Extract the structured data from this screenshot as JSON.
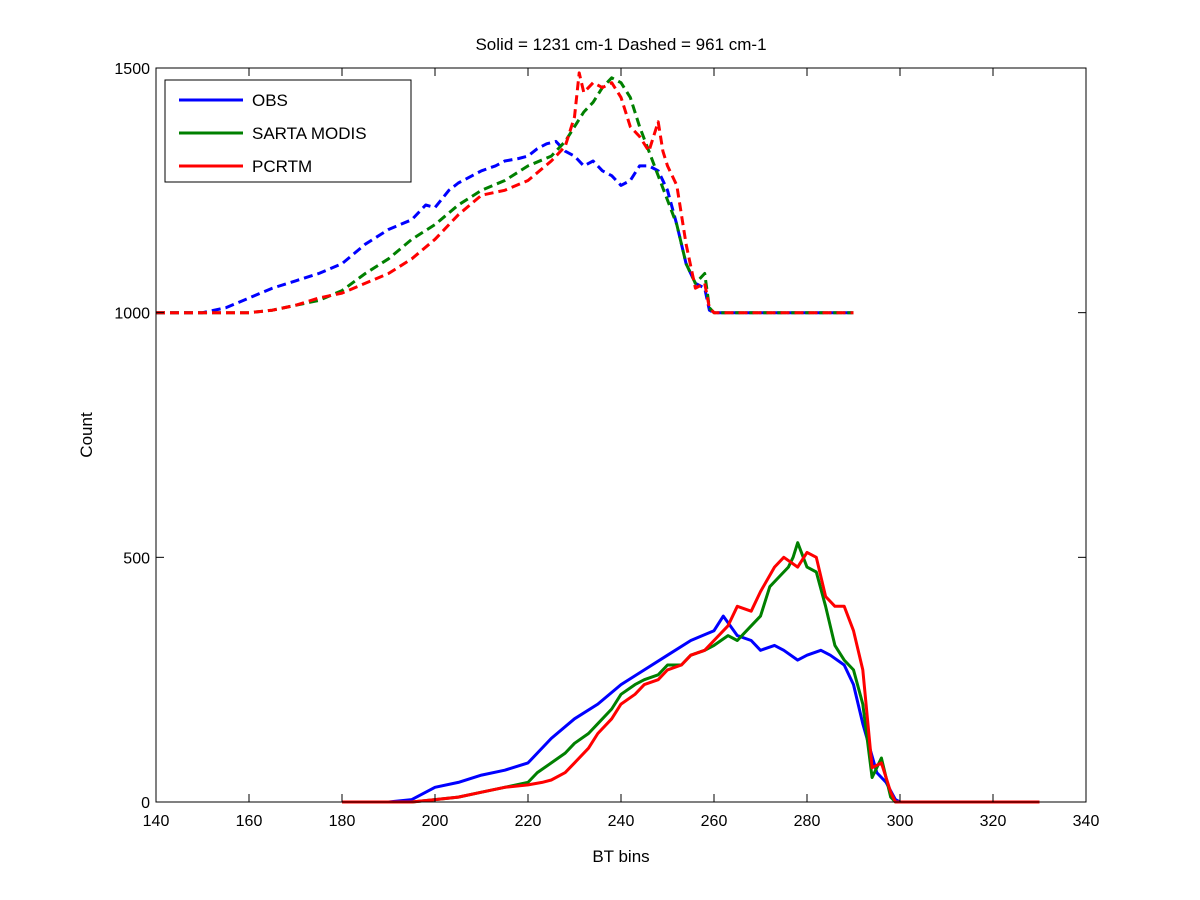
{
  "chart_data": {
    "type": "line",
    "title": "Solid = 1231 cm-1  Dashed = 961 cm-1",
    "xlabel": "BT bins",
    "ylabel": "Count",
    "xlim": [
      140,
      340
    ],
    "ylim": [
      0,
      1500
    ],
    "xticks": [
      140,
      160,
      180,
      200,
      220,
      240,
      260,
      280,
      300,
      320,
      340
    ],
    "yticks": [
      0,
      500,
      1000,
      1500
    ],
    "grid": false,
    "legend_position": "top-left",
    "legend": [
      {
        "label": "OBS",
        "color": "#0000ff"
      },
      {
        "label": "SARTA MODIS",
        "color": "#008000"
      },
      {
        "label": "PCRTM",
        "color": "#ff0000"
      }
    ],
    "series": [
      {
        "name": "OBS",
        "color": "#0000ff",
        "style": "dashed",
        "x": [
          140,
          150,
          155,
          160,
          165,
          170,
          175,
          180,
          185,
          190,
          195,
          198,
          200,
          203,
          205,
          208,
          210,
          213,
          215,
          218,
          220,
          222,
          224,
          226,
          228,
          230,
          232,
          234,
          236,
          238,
          240,
          242,
          244,
          246,
          248,
          250,
          252,
          254,
          256,
          258,
          259,
          260,
          265,
          270,
          275,
          280,
          285,
          290
        ],
        "y": [
          1000,
          1000,
          1010,
          1030,
          1050,
          1065,
          1080,
          1100,
          1140,
          1170,
          1190,
          1220,
          1215,
          1250,
          1265,
          1280,
          1290,
          1300,
          1310,
          1315,
          1320,
          1335,
          1345,
          1350,
          1330,
          1320,
          1300,
          1310,
          1290,
          1280,
          1260,
          1270,
          1300,
          1300,
          1290,
          1250,
          1180,
          1100,
          1060,
          1050,
          1005,
          1000,
          1000,
          1000,
          1000,
          1000,
          1000,
          1000
        ]
      },
      {
        "name": "SARTA MODIS",
        "color": "#008000",
        "style": "dashed",
        "x": [
          140,
          160,
          165,
          170,
          175,
          180,
          185,
          190,
          195,
          200,
          205,
          210,
          215,
          220,
          225,
          228,
          230,
          232,
          234,
          236,
          238,
          240,
          242,
          244,
          246,
          248,
          250,
          252,
          254,
          256,
          258,
          259,
          260,
          265,
          270,
          275,
          280,
          285,
          290
        ],
        "y": [
          1000,
          1000,
          1005,
          1015,
          1025,
          1045,
          1080,
          1110,
          1150,
          1180,
          1220,
          1250,
          1270,
          1300,
          1320,
          1350,
          1380,
          1410,
          1430,
          1460,
          1480,
          1470,
          1440,
          1380,
          1330,
          1280,
          1230,
          1180,
          1100,
          1060,
          1080,
          1010,
          1000,
          1000,
          1000,
          1000,
          1000,
          1000,
          1000
        ]
      },
      {
        "name": "PCRTM",
        "color": "#ff0000",
        "style": "dashed",
        "x": [
          140,
          160,
          165,
          170,
          175,
          180,
          185,
          190,
          195,
          200,
          205,
          210,
          215,
          220,
          225,
          228,
          230,
          231,
          232,
          234,
          236,
          238,
          240,
          242,
          244,
          246,
          248,
          249,
          250,
          252,
          254,
          256,
          258,
          259,
          260,
          265,
          270,
          275,
          280,
          285,
          290
        ],
        "y": [
          1000,
          1000,
          1005,
          1015,
          1030,
          1040,
          1060,
          1080,
          1110,
          1150,
          1200,
          1240,
          1250,
          1270,
          1310,
          1340,
          1400,
          1490,
          1450,
          1470,
          1460,
          1470,
          1440,
          1380,
          1360,
          1330,
          1390,
          1330,
          1300,
          1260,
          1140,
          1050,
          1060,
          1010,
          1000,
          1000,
          1000,
          1000,
          1000,
          1000,
          1000
        ]
      },
      {
        "name": "OBS",
        "color": "#0000ff",
        "style": "solid",
        "x": [
          180,
          190,
          195,
          200,
          205,
          210,
          215,
          220,
          222,
          225,
          230,
          235,
          240,
          245,
          250,
          255,
          260,
          262,
          265,
          268,
          270,
          273,
          275,
          278,
          280,
          283,
          285,
          288,
          290,
          292,
          295,
          297,
          299,
          300,
          310,
          320,
          330
        ],
        "y": [
          0,
          0,
          5,
          30,
          40,
          55,
          65,
          80,
          100,
          130,
          170,
          200,
          240,
          270,
          300,
          330,
          350,
          380,
          340,
          330,
          310,
          320,
          310,
          290,
          300,
          310,
          300,
          280,
          240,
          160,
          60,
          40,
          5,
          0,
          0,
          0,
          0
        ]
      },
      {
        "name": "SARTA MODIS",
        "color": "#008000",
        "style": "solid",
        "x": [
          180,
          195,
          200,
          205,
          210,
          215,
          220,
          222,
          225,
          228,
          230,
          233,
          235,
          238,
          240,
          243,
          245,
          248,
          250,
          253,
          255,
          258,
          260,
          263,
          265,
          268,
          270,
          272,
          274,
          276,
          277,
          278,
          280,
          282,
          284,
          286,
          288,
          290,
          292,
          294,
          296,
          298,
          299,
          300,
          310,
          320,
          330
        ],
        "y": [
          0,
          0,
          5,
          10,
          20,
          30,
          40,
          60,
          80,
          100,
          120,
          140,
          160,
          190,
          220,
          240,
          250,
          260,
          280,
          280,
          300,
          310,
          320,
          340,
          330,
          360,
          380,
          440,
          460,
          480,
          500,
          530,
          480,
          470,
          400,
          320,
          290,
          270,
          200,
          50,
          90,
          10,
          0,
          0,
          0,
          0,
          0
        ]
      },
      {
        "name": "PCRTM",
        "color": "#ff0000",
        "style": "solid",
        "x": [
          180,
          195,
          200,
          205,
          210,
          215,
          220,
          223,
          225,
          228,
          230,
          233,
          235,
          238,
          240,
          243,
          245,
          248,
          250,
          253,
          255,
          258,
          260,
          263,
          265,
          268,
          270,
          273,
          275,
          278,
          280,
          282,
          284,
          286,
          288,
          290,
          292,
          294,
          296,
          298,
          299,
          300,
          310,
          320,
          330
        ],
        "y": [
          0,
          0,
          5,
          10,
          20,
          30,
          35,
          40,
          45,
          60,
          80,
          110,
          140,
          170,
          200,
          220,
          240,
          250,
          270,
          280,
          300,
          310,
          330,
          360,
          400,
          390,
          430,
          480,
          500,
          480,
          510,
          500,
          420,
          400,
          400,
          350,
          270,
          70,
          80,
          20,
          0,
          0,
          0,
          0,
          0
        ]
      }
    ]
  }
}
